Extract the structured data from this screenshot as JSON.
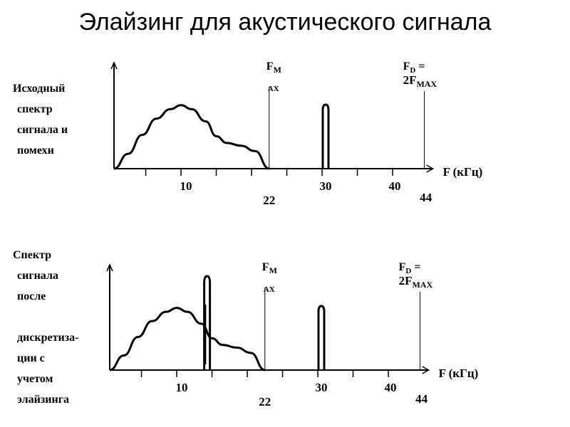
{
  "title": "Элайзинг для акустического сигнала",
  "colors": {
    "ink": "#000000",
    "background": "#ffffff"
  },
  "top_panel": {
    "label_lines": [
      "Исходный",
      "спектр",
      "сигнала и",
      "помехи"
    ],
    "fmax_label": {
      "main": "F",
      "sub_top": "M",
      "sub_bottom": "AX"
    },
    "fd_label": {
      "line1": "F",
      "line1_sub": "D",
      "line1_rest": " =",
      "line2": "2F",
      "line2_sub": "MAX"
    },
    "axis_label": "F (кГц)",
    "ticks": [
      {
        "value": 10,
        "label": "10"
      },
      {
        "value": 22,
        "label": "22"
      },
      {
        "value": 30,
        "label": "30"
      },
      {
        "value": 40,
        "label": "40"
      },
      {
        "value": 44,
        "label": "44"
      }
    ]
  },
  "bottom_panel": {
    "label_lines": [
      "Спектр",
      "сигнала",
      "после",
      "",
      "дискретиза-",
      "ции с",
      "учетом",
      "элайзинга"
    ],
    "fmax_label": {
      "main": "F",
      "sub_top": "M",
      "sub_bottom": "AX"
    },
    "fd_label": {
      "line1": "F",
      "line1_sub": "D",
      "line1_rest": " =",
      "line2": "2F",
      "line2_sub": "MAX"
    },
    "axis_label": "F (кГц)",
    "ticks": [
      {
        "value": 10,
        "label": "10"
      },
      {
        "value": 22,
        "label": "22"
      },
      {
        "value": 30,
        "label": "30"
      },
      {
        "value": 40,
        "label": "40"
      },
      {
        "value": 44,
        "label": "44"
      }
    ]
  }
}
